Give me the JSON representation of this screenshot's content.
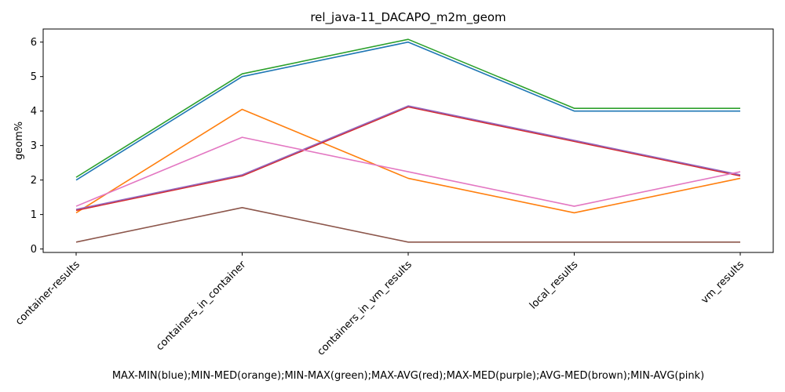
{
  "chart_data": {
    "type": "line",
    "title": "rel_java-11_DACAPO_m2m_geom",
    "xlabel": "MAX-MIN(blue);MIN-MED(orange);MIN-MAX(green);MAX-AVG(red);MAX-MED(purple);AVG-MED(brown);MIN-AVG(pink)",
    "ylabel": "geom%",
    "categories": [
      "container-results",
      "containers_in_container",
      "containers_in_vm_results",
      "local_results",
      "vm_results"
    ],
    "ylim": [
      -0.1,
      6.38
    ],
    "yticks": [
      0,
      1,
      2,
      3,
      4,
      5,
      6
    ],
    "grid": false,
    "series": [
      {
        "color": "#1f77b4",
        "values": [
          2.0,
          5.0,
          6.0,
          4.0,
          4.0
        ]
      },
      {
        "color": "#ff7f0e",
        "values": [
          1.05,
          4.05,
          2.05,
          1.05,
          2.05
        ]
      },
      {
        "color": "#2ca02c",
        "values": [
          2.08,
          5.08,
          6.08,
          4.08,
          4.08
        ]
      },
      {
        "color": "#d62728",
        "values": [
          1.12,
          2.12,
          4.12,
          3.12,
          2.12
        ]
      },
      {
        "color": "#9467bd",
        "values": [
          1.15,
          2.15,
          4.15,
          3.15,
          2.15
        ]
      },
      {
        "color": "#8c564b",
        "values": [
          0.2,
          1.2,
          0.2,
          0.2,
          0.2
        ]
      },
      {
        "color": "#e377c2",
        "values": [
          1.24,
          3.24,
          2.24,
          1.24,
          2.24
        ]
      }
    ]
  }
}
